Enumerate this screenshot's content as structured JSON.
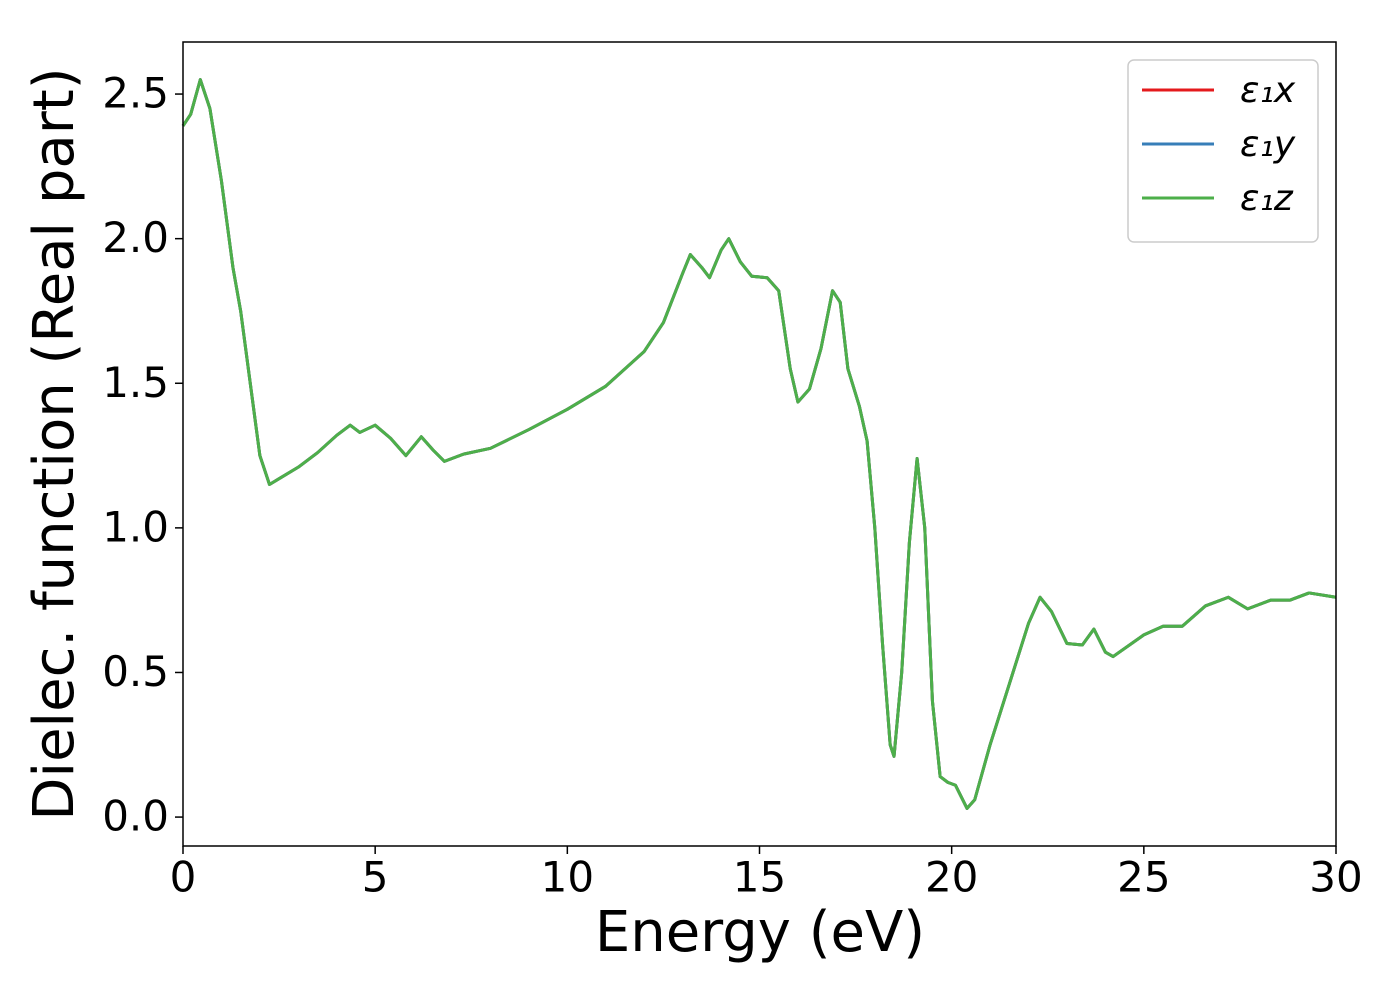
{
  "chart_data": {
    "type": "line",
    "xlabel": "Energy (eV)",
    "ylabel": "Dielec. function (Real part)",
    "x": [
      0,
      0.2,
      0.45,
      0.7,
      1.0,
      1.3,
      1.5,
      1.8,
      2.0,
      2.25,
      2.5,
      3.0,
      3.5,
      4.0,
      4.35,
      4.6,
      5.0,
      5.4,
      5.8,
      6.2,
      6.5,
      6.8,
      7.3,
      8.0,
      9.0,
      10.0,
      11.0,
      12.0,
      12.5,
      13.0,
      13.2,
      13.5,
      13.7,
      14.0,
      14.2,
      14.5,
      14.8,
      15.2,
      15.5,
      15.8,
      16.0,
      16.3,
      16.6,
      16.9,
      17.1,
      17.3,
      17.6,
      17.8,
      18.0,
      18.2,
      18.4,
      18.5,
      18.7,
      18.9,
      19.1,
      19.3,
      19.5,
      19.7,
      19.9,
      20.1,
      20.4,
      20.6,
      21.0,
      21.5,
      22.0,
      22.3,
      22.6,
      23.0,
      23.4,
      23.7,
      24.0,
      24.2,
      25.0,
      25.5,
      26.0,
      26.6,
      27.2,
      27.7,
      28.3,
      28.8,
      29.3,
      30
    ],
    "series": [
      {
        "name": "ε₁x",
        "color": "#e41a1c",
        "values": [
          2.39,
          2.43,
          2.55,
          2.45,
          2.2,
          1.9,
          1.75,
          1.45,
          1.25,
          1.15,
          1.17,
          1.21,
          1.26,
          1.32,
          1.355,
          1.33,
          1.355,
          1.31,
          1.25,
          1.315,
          1.27,
          1.23,
          1.255,
          1.275,
          1.34,
          1.41,
          1.49,
          1.61,
          1.71,
          1.88,
          1.945,
          1.9,
          1.865,
          1.96,
          2.0,
          1.92,
          1.87,
          1.865,
          1.82,
          1.55,
          1.435,
          1.48,
          1.62,
          1.82,
          1.78,
          1.55,
          1.42,
          1.3,
          1.0,
          0.6,
          0.25,
          0.21,
          0.5,
          0.95,
          1.24,
          1.0,
          0.4,
          0.14,
          0.12,
          0.11,
          0.03,
          0.06,
          0.25,
          0.46,
          0.67,
          0.76,
          0.71,
          0.6,
          0.595,
          0.65,
          0.57,
          0.555,
          0.63,
          0.66,
          0.66,
          0.73,
          0.76,
          0.72,
          0.75,
          0.75,
          0.775,
          0.76
        ]
      },
      {
        "name": "ε₁y",
        "color": "#377eb8",
        "values": [
          2.39,
          2.43,
          2.55,
          2.45,
          2.2,
          1.9,
          1.75,
          1.45,
          1.25,
          1.15,
          1.17,
          1.21,
          1.26,
          1.32,
          1.355,
          1.33,
          1.355,
          1.31,
          1.25,
          1.315,
          1.27,
          1.23,
          1.255,
          1.275,
          1.34,
          1.41,
          1.49,
          1.61,
          1.71,
          1.88,
          1.945,
          1.9,
          1.865,
          1.96,
          2.0,
          1.92,
          1.87,
          1.865,
          1.82,
          1.55,
          1.435,
          1.48,
          1.62,
          1.82,
          1.78,
          1.55,
          1.42,
          1.3,
          1.0,
          0.6,
          0.25,
          0.21,
          0.5,
          0.95,
          1.24,
          1.0,
          0.4,
          0.14,
          0.12,
          0.11,
          0.03,
          0.06,
          0.25,
          0.46,
          0.67,
          0.76,
          0.71,
          0.6,
          0.595,
          0.65,
          0.57,
          0.555,
          0.63,
          0.66,
          0.66,
          0.73,
          0.76,
          0.72,
          0.75,
          0.75,
          0.775,
          0.76
        ]
      },
      {
        "name": "ε₁z",
        "color": "#4daf4a",
        "values": [
          2.39,
          2.43,
          2.55,
          2.45,
          2.2,
          1.9,
          1.75,
          1.45,
          1.25,
          1.15,
          1.17,
          1.21,
          1.26,
          1.32,
          1.355,
          1.33,
          1.355,
          1.31,
          1.25,
          1.315,
          1.27,
          1.23,
          1.255,
          1.275,
          1.34,
          1.41,
          1.49,
          1.61,
          1.71,
          1.88,
          1.945,
          1.9,
          1.865,
          1.96,
          2.0,
          1.92,
          1.87,
          1.865,
          1.82,
          1.55,
          1.435,
          1.48,
          1.62,
          1.82,
          1.78,
          1.55,
          1.42,
          1.3,
          1.0,
          0.6,
          0.25,
          0.21,
          0.5,
          0.95,
          1.24,
          1.0,
          0.4,
          0.14,
          0.12,
          0.11,
          0.03,
          0.06,
          0.25,
          0.46,
          0.67,
          0.76,
          0.71,
          0.6,
          0.595,
          0.65,
          0.57,
          0.555,
          0.63,
          0.66,
          0.66,
          0.73,
          0.76,
          0.72,
          0.75,
          0.75,
          0.775,
          0.76
        ]
      }
    ],
    "xlim": [
      0,
      30
    ],
    "ylim": [
      -0.1,
      2.68
    ],
    "xticks": [
      0,
      5,
      10,
      15,
      20,
      25,
      30
    ],
    "yticks": [
      {
        "value": 0,
        "label": "0.0"
      },
      0.5,
      {
        "value": 1,
        "label": "1.0"
      },
      1.5,
      {
        "value": 2,
        "label": "2.0"
      },
      2.5
    ],
    "grid": false,
    "legend": "upper right"
  }
}
